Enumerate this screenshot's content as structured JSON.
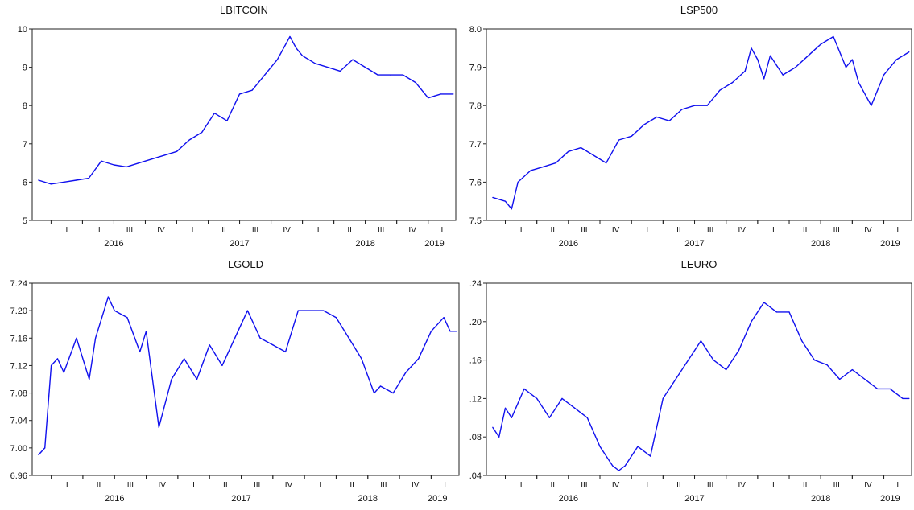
{
  "figure": {
    "series_color": "#1010EE",
    "axis_color": "#222222",
    "background": "#FFFFFF"
  },
  "chart_data": [
    {
      "type": "line",
      "title": "LBITCOIN",
      "ylim": [
        5,
        10
      ],
      "yticks": [
        5,
        6,
        7,
        8,
        9,
        10
      ],
      "ytick_labels": [
        "5",
        "6",
        "7",
        "8",
        "9",
        "10"
      ],
      "grid": false,
      "quarter_labels": [
        "I",
        "II",
        "III",
        "IV",
        "I",
        "II",
        "III",
        "IV",
        "I",
        "II",
        "III",
        "IV",
        "I"
      ],
      "year_labels": [
        "2016",
        "2017",
        "2018",
        "2019"
      ],
      "x": [
        2015.9,
        2016.0,
        2016.1,
        2016.2,
        2016.3,
        2016.4,
        2016.5,
        2016.6,
        2016.7,
        2016.8,
        2016.9,
        2017.0,
        2017.1,
        2017.2,
        2017.3,
        2017.4,
        2017.5,
        2017.6,
        2017.7,
        2017.8,
        2017.9,
        2017.95,
        2018.0,
        2018.1,
        2018.2,
        2018.3,
        2018.4,
        2018.5,
        2018.6,
        2018.7,
        2018.8,
        2018.9,
        2019.0,
        2019.05,
        2019.1,
        2019.2
      ],
      "values": [
        6.05,
        5.95,
        6.0,
        6.05,
        6.1,
        6.55,
        6.45,
        6.4,
        6.5,
        6.6,
        6.7,
        6.8,
        7.1,
        7.3,
        7.8,
        7.6,
        8.3,
        8.4,
        8.8,
        9.2,
        9.8,
        9.5,
        9.3,
        9.1,
        9.0,
        8.9,
        9.2,
        9.0,
        8.8,
        8.8,
        8.8,
        8.6,
        8.2,
        8.25,
        8.3,
        8.3
      ]
    },
    {
      "type": "line",
      "title": "LSP500",
      "ylim": [
        7.5,
        8.0
      ],
      "yticks": [
        7.5,
        7.6,
        7.7,
        7.8,
        7.9,
        8.0
      ],
      "ytick_labels": [
        "7.5",
        "7.6",
        "7.7",
        "7.8",
        "7.9",
        "8.0"
      ],
      "grid": false,
      "quarter_labels": [
        "I",
        "II",
        "III",
        "IV",
        "I",
        "II",
        "III",
        "IV",
        "I",
        "II",
        "III",
        "IV",
        "I"
      ],
      "year_labels": [
        "2016",
        "2017",
        "2018",
        "2019"
      ],
      "x": [
        2015.9,
        2016.0,
        2016.05,
        2016.1,
        2016.2,
        2016.3,
        2016.4,
        2016.5,
        2016.6,
        2016.7,
        2016.8,
        2016.9,
        2017.0,
        2017.1,
        2017.2,
        2017.3,
        2017.4,
        2017.5,
        2017.6,
        2017.7,
        2017.8,
        2017.9,
        2017.95,
        2018.0,
        2018.05,
        2018.1,
        2018.2,
        2018.3,
        2018.4,
        2018.5,
        2018.6,
        2018.7,
        2018.75,
        2018.8,
        2018.9,
        2019.0,
        2019.1,
        2019.2
      ],
      "values": [
        7.56,
        7.55,
        7.53,
        7.6,
        7.63,
        7.64,
        7.65,
        7.68,
        7.69,
        7.67,
        7.65,
        7.71,
        7.72,
        7.75,
        7.77,
        7.76,
        7.79,
        7.8,
        7.8,
        7.84,
        7.86,
        7.89,
        7.95,
        7.92,
        7.87,
        7.93,
        7.88,
        7.9,
        7.93,
        7.96,
        7.98,
        7.9,
        7.92,
        7.86,
        7.8,
        7.88,
        7.92,
        7.94
      ]
    },
    {
      "type": "line",
      "title": "LGOLD",
      "ylim": [
        6.96,
        7.24
      ],
      "yticks": [
        6.96,
        7.0,
        7.04,
        7.08,
        7.12,
        7.16,
        7.2,
        7.24
      ],
      "ytick_labels": [
        "6.96",
        "7.00",
        "7.04",
        "7.08",
        "7.12",
        "7.16",
        "7.20",
        "7.24"
      ],
      "grid": false,
      "quarter_labels": [
        "I",
        "II",
        "III",
        "IV",
        "I",
        "II",
        "III",
        "IV",
        "I",
        "II",
        "III",
        "IV",
        "I"
      ],
      "year_labels": [
        "2016",
        "2017",
        "2018",
        "2019"
      ],
      "x": [
        2015.9,
        2015.95,
        2016.0,
        2016.05,
        2016.1,
        2016.2,
        2016.3,
        2016.35,
        2016.45,
        2016.5,
        2016.6,
        2016.7,
        2016.75,
        2016.85,
        2016.95,
        2017.05,
        2017.15,
        2017.25,
        2017.35,
        2017.45,
        2017.55,
        2017.65,
        2017.75,
        2017.85,
        2017.95,
        2018.05,
        2018.15,
        2018.25,
        2018.35,
        2018.45,
        2018.55,
        2018.6,
        2018.7,
        2018.8,
        2018.9,
        2019.0,
        2019.1,
        2019.15,
        2019.2
      ],
      "values": [
        6.99,
        7.0,
        7.12,
        7.13,
        7.11,
        7.16,
        7.1,
        7.16,
        7.22,
        7.2,
        7.19,
        7.14,
        7.17,
        7.03,
        7.1,
        7.13,
        7.1,
        7.15,
        7.12,
        7.16,
        7.2,
        7.16,
        7.15,
        7.14,
        7.2,
        7.2,
        7.2,
        7.19,
        7.16,
        7.13,
        7.08,
        7.09,
        7.08,
        7.11,
        7.13,
        7.17,
        7.19,
        7.17,
        7.17
      ]
    },
    {
      "type": "line",
      "title": "LEURO",
      "ylim": [
        0.04,
        0.24
      ],
      "yticks": [
        0.04,
        0.08,
        0.12,
        0.16,
        0.2,
        0.24
      ],
      "ytick_labels": [
        ".04",
        ".08",
        ".12",
        ".16",
        ".20",
        ".24"
      ],
      "grid": false,
      "quarter_labels": [
        "I",
        "II",
        "III",
        "IV",
        "I",
        "II",
        "III",
        "IV",
        "I",
        "II",
        "III",
        "IV",
        "I"
      ],
      "year_labels": [
        "2016",
        "2017",
        "2018",
        "2019"
      ],
      "x": [
        2015.9,
        2015.95,
        2016.0,
        2016.05,
        2016.15,
        2016.25,
        2016.35,
        2016.45,
        2016.55,
        2016.65,
        2016.75,
        2016.85,
        2016.9,
        2016.95,
        2017.05,
        2017.15,
        2017.25,
        2017.35,
        2017.45,
        2017.55,
        2017.65,
        2017.75,
        2017.85,
        2017.95,
        2018.05,
        2018.15,
        2018.25,
        2018.35,
        2018.45,
        2018.55,
        2018.65,
        2018.75,
        2018.85,
        2018.95,
        2019.05,
        2019.15,
        2019.2
      ],
      "values": [
        0.09,
        0.08,
        0.11,
        0.1,
        0.13,
        0.12,
        0.1,
        0.12,
        0.11,
        0.1,
        0.07,
        0.05,
        0.045,
        0.05,
        0.07,
        0.06,
        0.12,
        0.14,
        0.16,
        0.18,
        0.16,
        0.15,
        0.17,
        0.2,
        0.22,
        0.21,
        0.21,
        0.18,
        0.16,
        0.155,
        0.14,
        0.15,
        0.14,
        0.13,
        0.13,
        0.12,
        0.12
      ]
    }
  ]
}
